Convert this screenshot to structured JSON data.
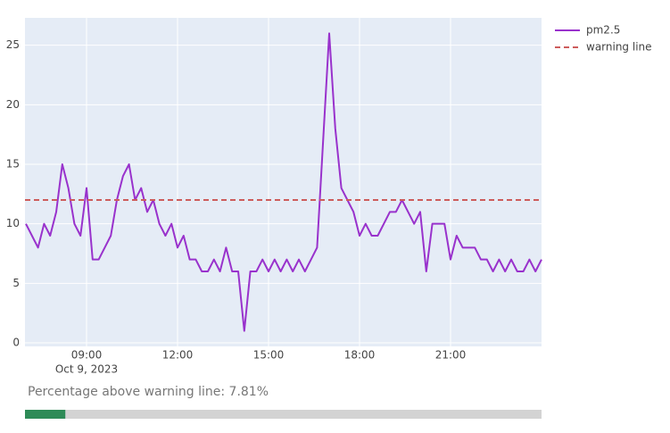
{
  "chart_data": {
    "type": "line",
    "series": [
      {
        "name": "pm2.5",
        "color": "#9932cc",
        "dash": false,
        "x": [
          7.0,
          7.2,
          7.4,
          7.6,
          7.8,
          8.0,
          8.2,
          8.4,
          8.6,
          8.8,
          9.0,
          9.2,
          9.4,
          9.6,
          9.8,
          10.0,
          10.2,
          10.4,
          10.6,
          10.8,
          11.0,
          11.2,
          11.4,
          11.6,
          11.8,
          12.0,
          12.2,
          12.4,
          12.6,
          12.8,
          13.0,
          13.2,
          13.4,
          13.6,
          13.8,
          14.0,
          14.2,
          14.4,
          14.6,
          14.8,
          15.0,
          15.2,
          15.4,
          15.6,
          15.8,
          16.0,
          16.2,
          16.4,
          16.6,
          16.8,
          17.0,
          17.2,
          17.4,
          17.6,
          17.8,
          18.0,
          18.2,
          18.4,
          18.6,
          18.8,
          19.0,
          19.2,
          19.4,
          19.6,
          19.8,
          20.0,
          20.2,
          20.4,
          20.6,
          20.8,
          21.0,
          21.2,
          21.4,
          21.6,
          21.8,
          22.0,
          22.2,
          22.4,
          22.6,
          22.8,
          23.0,
          23.2,
          23.4,
          23.6,
          23.8,
          24.0
        ],
        "values": [
          10,
          9,
          8,
          10,
          9,
          11,
          15,
          13,
          10,
          9,
          13,
          7,
          7,
          8,
          9,
          12,
          14,
          15,
          12,
          13,
          11,
          12,
          10,
          9,
          10,
          8,
          9,
          7,
          7,
          6,
          6,
          7,
          6,
          8,
          6,
          6,
          1,
          6,
          6,
          7,
          6,
          7,
          6,
          7,
          6,
          7,
          6,
          7,
          8,
          17,
          26,
          18,
          13,
          12,
          11,
          9,
          10,
          9,
          9,
          10,
          11,
          11,
          12,
          11,
          10,
          11,
          6,
          10,
          10,
          10,
          7,
          9,
          8,
          8,
          8,
          7,
          7,
          6,
          7,
          6,
          7,
          6,
          6,
          7,
          6,
          7
        ]
      },
      {
        "name": "warning line",
        "color": "#cd5c5c",
        "dash": true,
        "x": [
          6.97,
          24.0
        ],
        "values": [
          12,
          12
        ]
      }
    ],
    "xlim": [
      6.97,
      24.0
    ],
    "xticks": [
      {
        "value": 9,
        "label": "09:00"
      },
      {
        "value": 12,
        "label": "12:00"
      },
      {
        "value": 15,
        "label": "15:00"
      },
      {
        "value": 18,
        "label": "18:00"
      },
      {
        "value": 21,
        "label": "21:00"
      }
    ],
    "x_date_label": "Oct 9, 2023",
    "ylim": [
      -0.3,
      27.3
    ],
    "yticks": [
      0,
      5,
      10,
      15,
      20,
      25
    ],
    "grid": true,
    "legend": "right",
    "percentage_text": "Percentage above warning line: 7.81%",
    "percentage_above": 7.81,
    "progress_color": "#2e8b57"
  }
}
